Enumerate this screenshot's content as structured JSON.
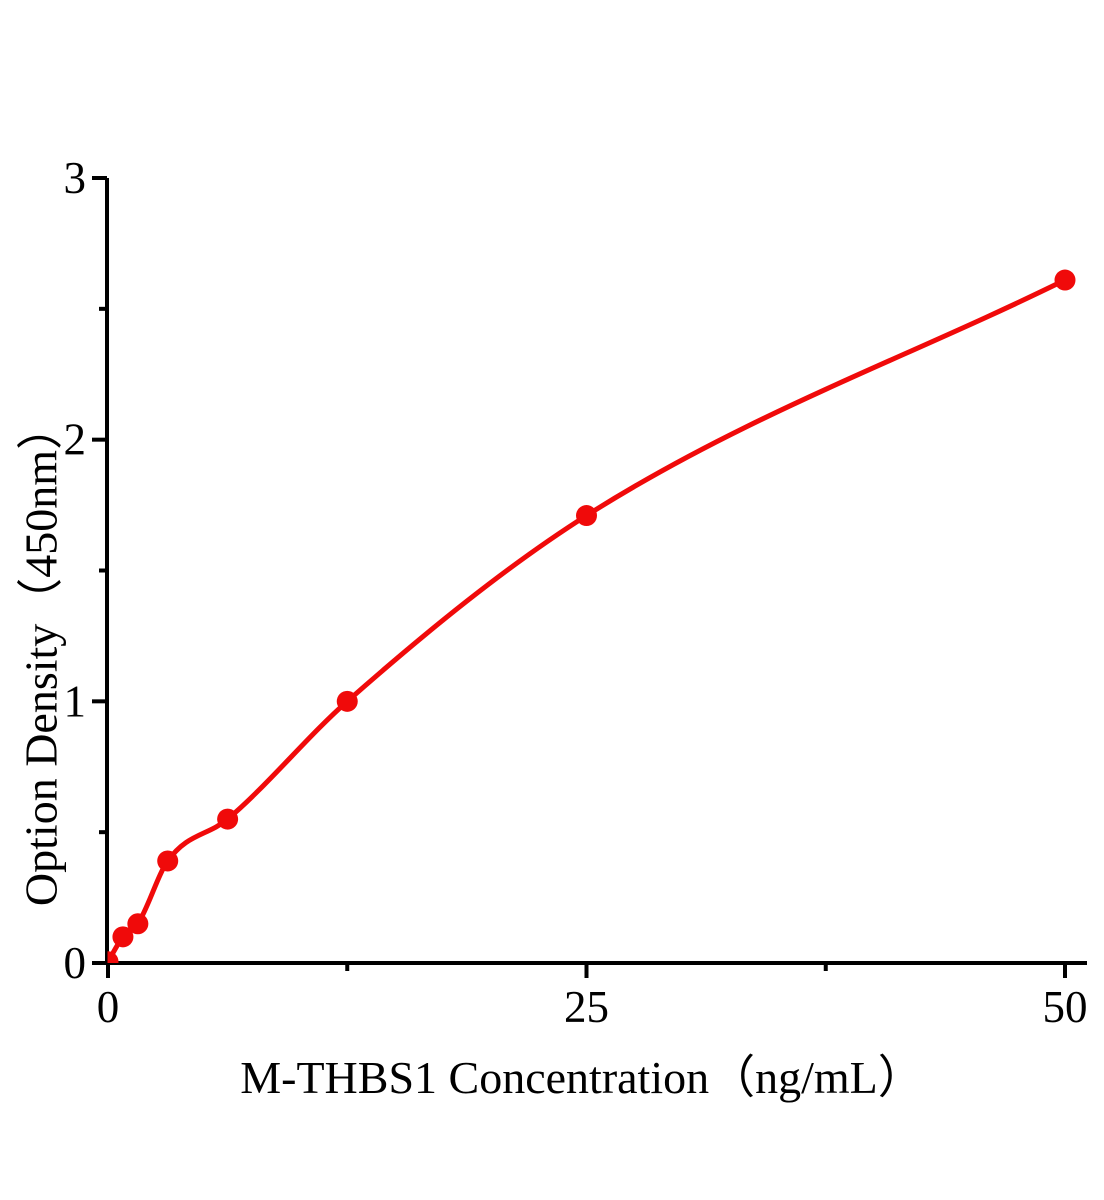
{
  "figure": {
    "background": "#ffffff"
  },
  "chart_data": {
    "type": "scatter",
    "subtype": "elisa-standard-curve-with-fit-line",
    "title": "",
    "xlabel": "M-THBS1 Concentration（ng/mL）",
    "ylabel": "Option Density（450nm）",
    "x": [
      0,
      0.78,
      1.56,
      3.12,
      6.25,
      12.5,
      25,
      50
    ],
    "y": [
      0.005,
      0.1,
      0.15,
      0.39,
      0.55,
      1.0,
      1.71,
      2.61
    ],
    "xlim": [
      0,
      50
    ],
    "ylim": [
      0,
      3
    ],
    "x_major_ticks": [
      0,
      25,
      50
    ],
    "x_tick_labels": [
      "0",
      "25",
      "50"
    ],
    "x_minor_ticks": [
      12.5,
      37.5
    ],
    "y_major_ticks": [
      0,
      1,
      2,
      3
    ],
    "y_tick_labels": [
      "0",
      "1",
      "2",
      "3"
    ],
    "y_minor_ticks": [
      0.5,
      1.5,
      2.5
    ],
    "grid": false,
    "legend": null,
    "line": "smooth",
    "marker": "filled-circle",
    "colors": {
      "curve": "#f00a0a",
      "marker": "#f00a0a",
      "axis": "#000000",
      "text": "#000000"
    }
  }
}
